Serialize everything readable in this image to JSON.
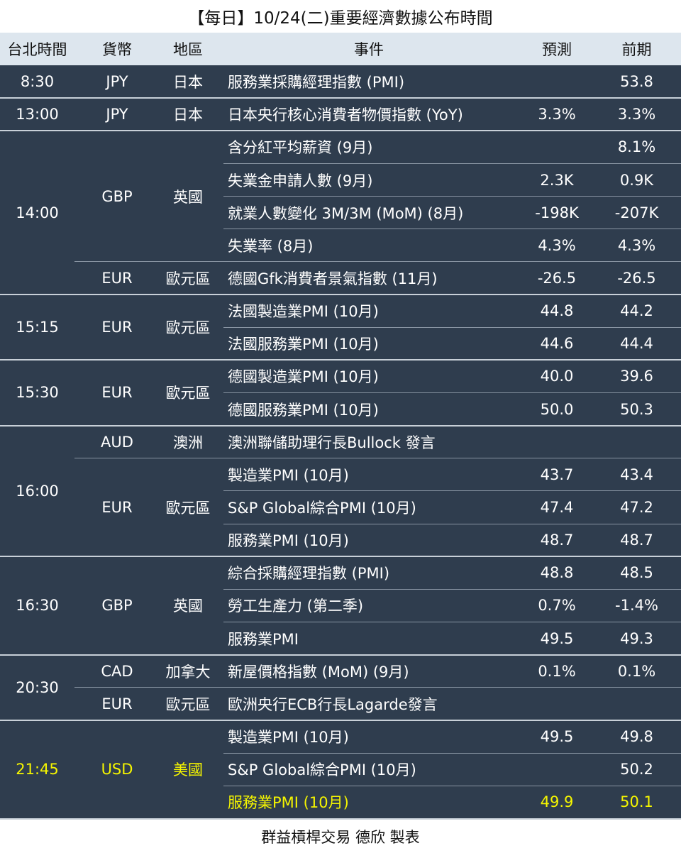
{
  "title": "【每日】10/24(二)重要經濟數據公布時間",
  "headers": {
    "time": "台北時間",
    "currency": "貨幣",
    "region": "地區",
    "event": "事件",
    "forecast": "預測",
    "previous": "前期"
  },
  "groups": [
    {
      "time": "8:30",
      "currencies": [
        {
          "currency": "JPY",
          "region": "日本",
          "events": [
            {
              "event": "服務業採購經理指數 (PMI)",
              "forecast": "",
              "previous": "53.8"
            }
          ]
        }
      ]
    },
    {
      "time": "13:00",
      "currencies": [
        {
          "currency": "JPY",
          "region": "日本",
          "events": [
            {
              "event": "日本央行核心消費者物價指數 (YoY)",
              "forecast": "3.3%",
              "previous": "3.3%"
            }
          ]
        }
      ]
    },
    {
      "time": "14:00",
      "currencies": [
        {
          "currency": "GBP",
          "region": "英國",
          "events": [
            {
              "event": "含分紅平均薪資 (9月)",
              "forecast": "",
              "previous": "8.1%"
            },
            {
              "event": "失業金申請人數 (9月)",
              "forecast": "2.3K",
              "previous": "0.9K"
            },
            {
              "event": "就業人數變化 3M/3M (MoM) (8月)",
              "forecast": "-198K",
              "previous": "-207K"
            },
            {
              "event": "失業率 (8月)",
              "forecast": "4.3%",
              "previous": "4.3%"
            }
          ]
        },
        {
          "currency": "EUR",
          "region": "歐元區",
          "events": [
            {
              "event": "德國Gfk消費者景氣指數 (11月)",
              "forecast": "-26.5",
              "previous": "-26.5"
            }
          ]
        }
      ]
    },
    {
      "time": "15:15",
      "currencies": [
        {
          "currency": "EUR",
          "region": "歐元區",
          "events": [
            {
              "event": "法國製造業PMI (10月)",
              "forecast": "44.8",
              "previous": "44.2"
            },
            {
              "event": "法國服務業PMI (10月)",
              "forecast": "44.6",
              "previous": "44.4"
            }
          ]
        }
      ]
    },
    {
      "time": "15:30",
      "currencies": [
        {
          "currency": "EUR",
          "region": "歐元區",
          "events": [
            {
              "event": "德國製造業PMI (10月)",
              "forecast": "40.0",
              "previous": "39.6"
            },
            {
              "event": "德國服務業PMI (10月)",
              "forecast": "50.0",
              "previous": "50.3"
            }
          ]
        }
      ]
    },
    {
      "time": "16:00",
      "currencies": [
        {
          "currency": "AUD",
          "region": "澳洲",
          "events": [
            {
              "event": "澳洲聯儲助理行長Bullock 發言",
              "forecast": "",
              "previous": ""
            }
          ]
        },
        {
          "currency": "EUR",
          "region": "歐元區",
          "events": [
            {
              "event": "製造業PMI (10月)",
              "forecast": "43.7",
              "previous": "43.4"
            },
            {
              "event": "S&P Global綜合PMI (10月)",
              "forecast": "47.4",
              "previous": "47.2"
            },
            {
              "event": "服務業PMI (10月)",
              "forecast": "48.7",
              "previous": "48.7"
            }
          ]
        }
      ]
    },
    {
      "time": "16:30",
      "currencies": [
        {
          "currency": "GBP",
          "region": "英國",
          "events": [
            {
              "event": "綜合採購經理指數 (PMI)",
              "forecast": "48.8",
              "previous": "48.5"
            },
            {
              "event": "勞工生產力 (第二季)",
              "forecast": "0.7%",
              "previous": "-1.4%"
            },
            {
              "event": "服務業PMI",
              "forecast": "49.5",
              "previous": "49.3"
            }
          ]
        }
      ]
    },
    {
      "time": "20:30",
      "currencies": [
        {
          "currency": "CAD",
          "region": "加拿大",
          "events": [
            {
              "event": "新屋價格指數 (MoM) (9月)",
              "forecast": "0.1%",
              "previous": "0.1%"
            }
          ]
        },
        {
          "currency": "EUR",
          "region": "歐元區",
          "events": [
            {
              "event": "歐洲央行ECB行長Lagarde發言",
              "forecast": "",
              "previous": ""
            }
          ]
        }
      ]
    },
    {
      "time": "21:45",
      "highlight": true,
      "currencies": [
        {
          "currency": "USD",
          "region": "美國",
          "highlight": true,
          "events": [
            {
              "event": "製造業PMI (10月)",
              "forecast": "49.5",
              "previous": "49.8"
            },
            {
              "event": "S&P Global綜合PMI (10月)",
              "forecast": "",
              "previous": "50.2"
            },
            {
              "event": "服務業PMI (10月)",
              "forecast": "49.9",
              "previous": "50.1",
              "highlight": true
            }
          ]
        }
      ]
    }
  ],
  "footer": "群益槓桿交易 德欣 製表",
  "colors": {
    "table_bg": "#2f3d4e",
    "header_bg": "#dde6ee",
    "text": "#ffffff",
    "highlight": "#f5f500"
  }
}
